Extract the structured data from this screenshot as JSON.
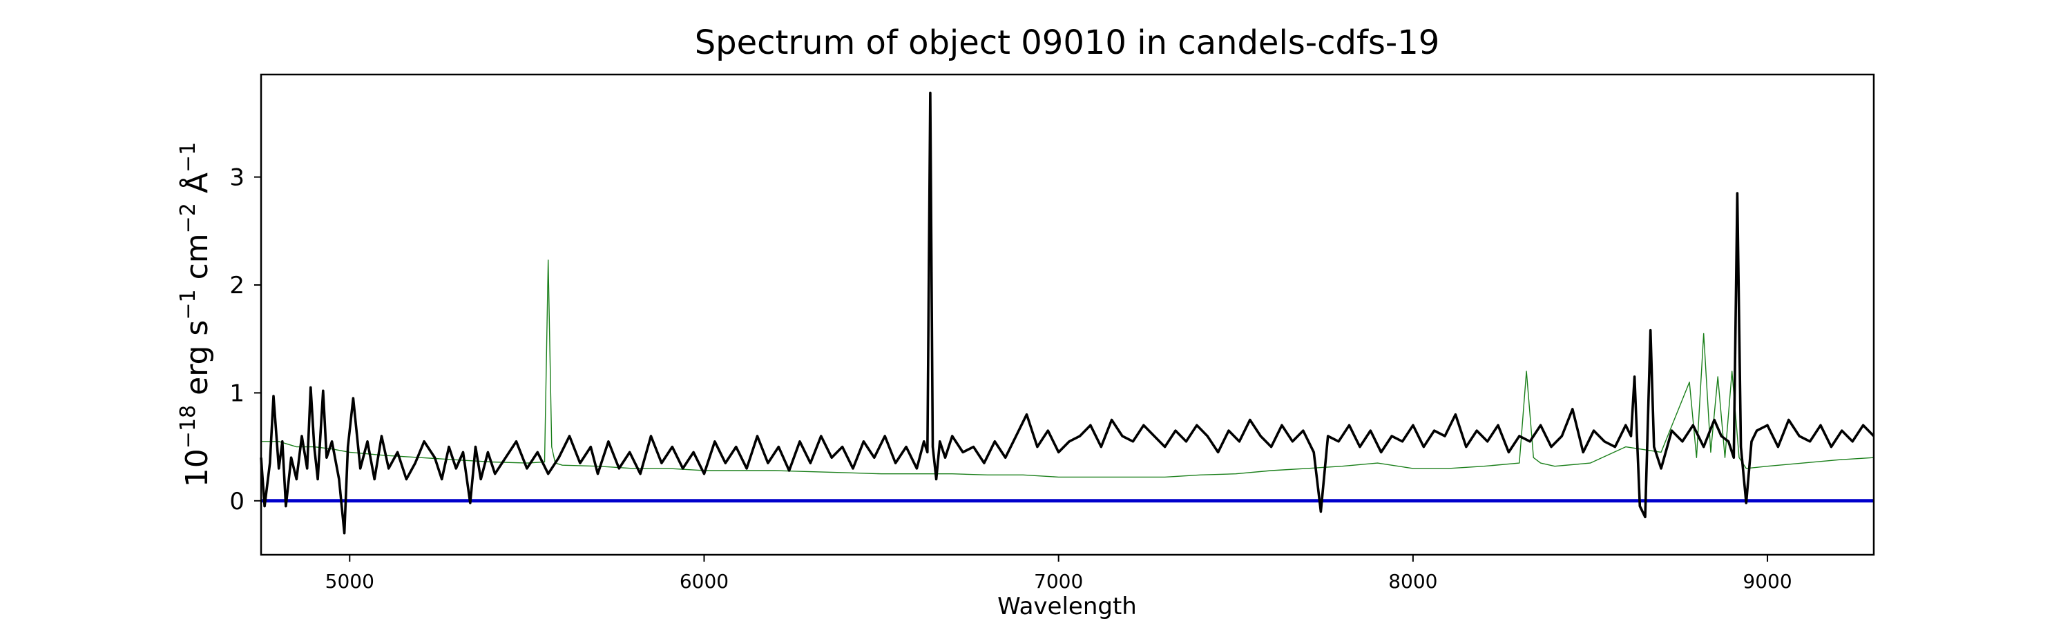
{
  "chart_data": {
    "type": "line",
    "title": "Spectrum of object 09010 in candels-cdfs-19",
    "xlabel": "Wavelength",
    "ylabel_parts": {
      "base": "10",
      "exp1": "−18",
      "erg": " erg s",
      "exp2": "−1",
      "cm": " cm",
      "exp3": "−2",
      "ang": " Å",
      "exp4": "−1"
    },
    "xlim": [
      4750,
      9300
    ],
    "ylim": [
      -0.5,
      3.95
    ],
    "xticks": [
      {
        "value": 5000,
        "label": "5000"
      },
      {
        "value": 6000,
        "label": "6000"
      },
      {
        "value": 7000,
        "label": "7000"
      },
      {
        "value": 8000,
        "label": "8000"
      },
      {
        "value": 9000,
        "label": "9000"
      }
    ],
    "yticks": [
      {
        "value": 0,
        "label": "0"
      },
      {
        "value": 1,
        "label": "1"
      },
      {
        "value": 2,
        "label": "2"
      },
      {
        "value": 3,
        "label": "3"
      }
    ],
    "grid": false,
    "legend": "none",
    "colors": {
      "flux": "#000000",
      "noise": "#1a7f1a",
      "zero": "#0000cc"
    },
    "series": [
      {
        "role": "flux",
        "x": [
          4750,
          4760,
          4775,
          4785,
          4800,
          4810,
          4820,
          4835,
          4850,
          4865,
          4880,
          4890,
          4900,
          4910,
          4925,
          4935,
          4950,
          4970,
          4985,
          4995,
          5010,
          5030,
          5050,
          5070,
          5090,
          5110,
          5135,
          5160,
          5185,
          5210,
          5240,
          5260,
          5280,
          5300,
          5320,
          5340,
          5355,
          5370,
          5390,
          5410,
          5440,
          5470,
          5500,
          5530,
          5560,
          5590,
          5620,
          5650,
          5680,
          5700,
          5730,
          5760,
          5790,
          5820,
          5850,
          5880,
          5910,
          5940,
          5970,
          6000,
          6030,
          6060,
          6090,
          6120,
          6150,
          6180,
          6210,
          6240,
          6270,
          6300,
          6330,
          6360,
          6390,
          6420,
          6450,
          6480,
          6510,
          6540,
          6570,
          6600,
          6620,
          6630,
          6638,
          6645,
          6655,
          6665,
          6680,
          6700,
          6730,
          6760,
          6790,
          6820,
          6850,
          6880,
          6910,
          6940,
          6970,
          7000,
          7030,
          7060,
          7090,
          7120,
          7150,
          7180,
          7210,
          7240,
          7270,
          7300,
          7330,
          7360,
          7390,
          7420,
          7450,
          7480,
          7510,
          7540,
          7570,
          7600,
          7630,
          7660,
          7690,
          7720,
          7740,
          7760,
          7790,
          7820,
          7850,
          7880,
          7910,
          7940,
          7970,
          8000,
          8030,
          8060,
          8090,
          8120,
          8150,
          8180,
          8210,
          8240,
          8270,
          8300,
          8330,
          8360,
          8390,
          8420,
          8450,
          8480,
          8510,
          8540,
          8570,
          8600,
          8615,
          8625,
          8640,
          8655,
          8670,
          8680,
          8700,
          8730,
          8760,
          8790,
          8820,
          8850,
          8870,
          8890,
          8905,
          8915,
          8925,
          8940,
          8955,
          8970,
          9000,
          9030,
          9060,
          9090,
          9120,
          9150,
          9180,
          9210,
          9240,
          9270,
          9300
        ],
        "y": [
          0.4,
          -0.05,
          0.35,
          0.97,
          0.3,
          0.55,
          -0.05,
          0.4,
          0.2,
          0.6,
          0.3,
          1.05,
          0.5,
          0.2,
          1.02,
          0.4,
          0.55,
          0.2,
          -0.3,
          0.5,
          0.95,
          0.3,
          0.55,
          0.2,
          0.6,
          0.3,
          0.45,
          0.2,
          0.35,
          0.55,
          0.4,
          0.2,
          0.5,
          0.3,
          0.45,
          -0.02,
          0.5,
          0.2,
          0.45,
          0.25,
          0.4,
          0.55,
          0.3,
          0.45,
          0.25,
          0.4,
          0.6,
          0.35,
          0.5,
          0.25,
          0.55,
          0.3,
          0.45,
          0.25,
          0.6,
          0.35,
          0.5,
          0.3,
          0.45,
          0.25,
          0.55,
          0.35,
          0.5,
          0.3,
          0.6,
          0.35,
          0.5,
          0.28,
          0.55,
          0.35,
          0.6,
          0.4,
          0.5,
          0.3,
          0.55,
          0.4,
          0.6,
          0.35,
          0.5,
          0.3,
          0.55,
          0.45,
          3.78,
          0.5,
          0.2,
          0.55,
          0.4,
          0.6,
          0.45,
          0.5,
          0.35,
          0.55,
          0.4,
          0.6,
          0.8,
          0.5,
          0.65,
          0.45,
          0.55,
          0.6,
          0.7,
          0.5,
          0.75,
          0.6,
          0.55,
          0.7,
          0.6,
          0.5,
          0.65,
          0.55,
          0.7,
          0.6,
          0.45,
          0.65,
          0.55,
          0.75,
          0.6,
          0.5,
          0.7,
          0.55,
          0.65,
          0.45,
          -0.1,
          0.6,
          0.55,
          0.7,
          0.5,
          0.65,
          0.45,
          0.6,
          0.55,
          0.7,
          0.5,
          0.65,
          0.6,
          0.8,
          0.5,
          0.65,
          0.55,
          0.7,
          0.45,
          0.6,
          0.55,
          0.7,
          0.5,
          0.6,
          0.85,
          0.45,
          0.65,
          0.55,
          0.5,
          0.7,
          0.6,
          1.15,
          -0.05,
          -0.15,
          1.58,
          0.5,
          0.3,
          0.65,
          0.55,
          0.7,
          0.5,
          0.75,
          0.6,
          0.55,
          0.4,
          2.85,
          0.5,
          -0.02,
          0.55,
          0.65,
          0.7,
          0.5,
          0.75,
          0.6,
          0.55,
          0.7,
          0.5,
          0.65,
          0.55,
          0.7,
          0.6
        ]
      },
      {
        "role": "noise",
        "x": [
          4750,
          4800,
          4850,
          4900,
          4950,
          5000,
          5100,
          5200,
          5300,
          5400,
          5500,
          5550,
          5560,
          5570,
          5580,
          5600,
          5700,
          5800,
          5900,
          6000,
          6100,
          6200,
          6300,
          6400,
          6500,
          6600,
          6700,
          6800,
          6900,
          7000,
          7100,
          7200,
          7300,
          7400,
          7500,
          7600,
          7700,
          7800,
          7900,
          8000,
          8100,
          8200,
          8300,
          8320,
          8340,
          8360,
          8400,
          8500,
          8600,
          8700,
          8780,
          8800,
          8820,
          8840,
          8860,
          8880,
          8900,
          8920,
          8940,
          9000,
          9100,
          9200,
          9300
        ],
        "y": [
          0.55,
          0.55,
          0.5,
          0.5,
          0.48,
          0.45,
          0.42,
          0.4,
          0.38,
          0.36,
          0.35,
          0.36,
          2.23,
          0.5,
          0.35,
          0.33,
          0.32,
          0.3,
          0.3,
          0.28,
          0.28,
          0.28,
          0.27,
          0.26,
          0.25,
          0.25,
          0.25,
          0.24,
          0.24,
          0.22,
          0.22,
          0.22,
          0.22,
          0.24,
          0.25,
          0.28,
          0.3,
          0.32,
          0.35,
          0.3,
          0.3,
          0.32,
          0.35,
          1.2,
          0.4,
          0.35,
          0.32,
          0.35,
          0.5,
          0.45,
          1.1,
          0.4,
          1.55,
          0.45,
          1.15,
          0.4,
          1.2,
          0.4,
          0.3,
          0.32,
          0.35,
          0.38,
          0.4
        ]
      },
      {
        "role": "zero",
        "x": [
          4750,
          9300
        ],
        "y": [
          0,
          0
        ]
      }
    ]
  }
}
